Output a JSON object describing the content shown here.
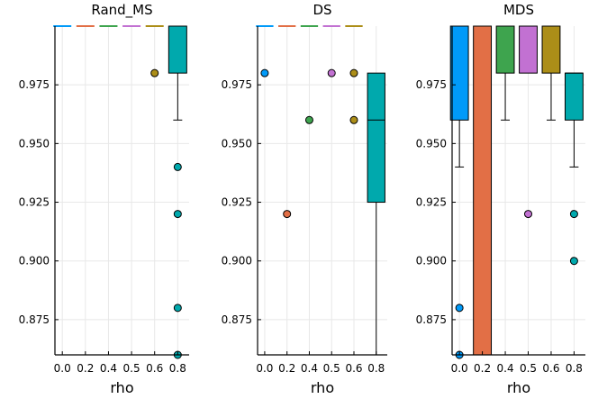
{
  "chart_data": {
    "type": "boxplot",
    "categories": [
      "0.0",
      "0.2",
      "0.4",
      "0.5",
      "0.6",
      "0.8"
    ],
    "category_values": [
      0.0,
      0.2,
      0.4,
      0.5,
      0.6,
      0.8
    ],
    "colors": [
      "#009af9",
      "#e26f46",
      "#3ea44e",
      "#c271d2",
      "#ac8e18",
      "#00a9ad"
    ],
    "y_ticks": [
      0.875,
      0.9,
      0.925,
      0.95,
      0.975
    ],
    "y_tick_labels": [
      "0.875",
      "0.900",
      "0.925",
      "0.950",
      "0.975"
    ],
    "ylim": [
      0.86,
      1.0
    ],
    "xlabel": "rho",
    "panels": [
      {
        "title": "Rand_MS",
        "boxes": [
          {
            "q1": 1.0,
            "median": 1.0,
            "q3": 1.0,
            "whisker_low": 1.0,
            "whisker_high": 1.0,
            "outliers": []
          },
          {
            "q1": 1.0,
            "median": 1.0,
            "q3": 1.0,
            "whisker_low": 1.0,
            "whisker_high": 1.0,
            "outliers": []
          },
          {
            "q1": 1.0,
            "median": 1.0,
            "q3": 1.0,
            "whisker_low": 1.0,
            "whisker_high": 1.0,
            "outliers": []
          },
          {
            "q1": 1.0,
            "median": 1.0,
            "q3": 1.0,
            "whisker_low": 1.0,
            "whisker_high": 1.0,
            "outliers": []
          },
          {
            "q1": 1.0,
            "median": 1.0,
            "q3": 1.0,
            "whisker_low": 1.0,
            "whisker_high": 1.0,
            "outliers": [
              0.98
            ]
          },
          {
            "q1": 0.98,
            "median": 1.0,
            "q3": 1.0,
            "whisker_low": 0.96,
            "whisker_high": 1.0,
            "outliers": [
              0.94,
              0.92,
              0.88,
              0.86
            ]
          }
        ]
      },
      {
        "title": "DS",
        "boxes": [
          {
            "q1": 1.0,
            "median": 1.0,
            "q3": 1.0,
            "whisker_low": 1.0,
            "whisker_high": 1.0,
            "outliers": [
              0.98
            ]
          },
          {
            "q1": 1.0,
            "median": 1.0,
            "q3": 1.0,
            "whisker_low": 1.0,
            "whisker_high": 1.0,
            "outliers": [
              0.92
            ]
          },
          {
            "q1": 1.0,
            "median": 1.0,
            "q3": 1.0,
            "whisker_low": 1.0,
            "whisker_high": 1.0,
            "outliers": [
              0.96
            ]
          },
          {
            "q1": 1.0,
            "median": 1.0,
            "q3": 1.0,
            "whisker_low": 1.0,
            "whisker_high": 1.0,
            "outliers": [
              0.98
            ]
          },
          {
            "q1": 1.0,
            "median": 1.0,
            "q3": 1.0,
            "whisker_low": 1.0,
            "whisker_high": 1.0,
            "outliers": [
              0.98,
              0.96
            ]
          },
          {
            "q1": 0.925,
            "median": 0.96,
            "q3": 0.98,
            "whisker_low": 0.86,
            "whisker_high": 1.0,
            "outliers": []
          }
        ]
      },
      {
        "title": "MDS",
        "boxes": [
          {
            "q1": 0.96,
            "median": 1.0,
            "q3": 1.0,
            "whisker_low": 0.94,
            "whisker_high": 1.0,
            "outliers": [
              0.88,
              0.86
            ]
          },
          {
            "q1": 0.86,
            "median": 1.0,
            "q3": 1.0,
            "whisker_low": 0.86,
            "whisker_high": 1.0,
            "outliers": []
          },
          {
            "q1": 0.98,
            "median": 1.0,
            "q3": 1.0,
            "whisker_low": 0.96,
            "whisker_high": 1.0,
            "outliers": []
          },
          {
            "q1": 0.98,
            "median": 1.0,
            "q3": 1.0,
            "whisker_low": 0.98,
            "whisker_high": 1.0,
            "outliers": [
              0.92
            ]
          },
          {
            "q1": 0.98,
            "median": 1.0,
            "q3": 1.0,
            "whisker_low": 0.96,
            "whisker_high": 1.0,
            "outliers": []
          },
          {
            "q1": 0.96,
            "median": 0.98,
            "q3": 0.98,
            "whisker_low": 0.94,
            "whisker_high": 1.0,
            "outliers": [
              0.92,
              0.9
            ]
          }
        ]
      }
    ]
  }
}
